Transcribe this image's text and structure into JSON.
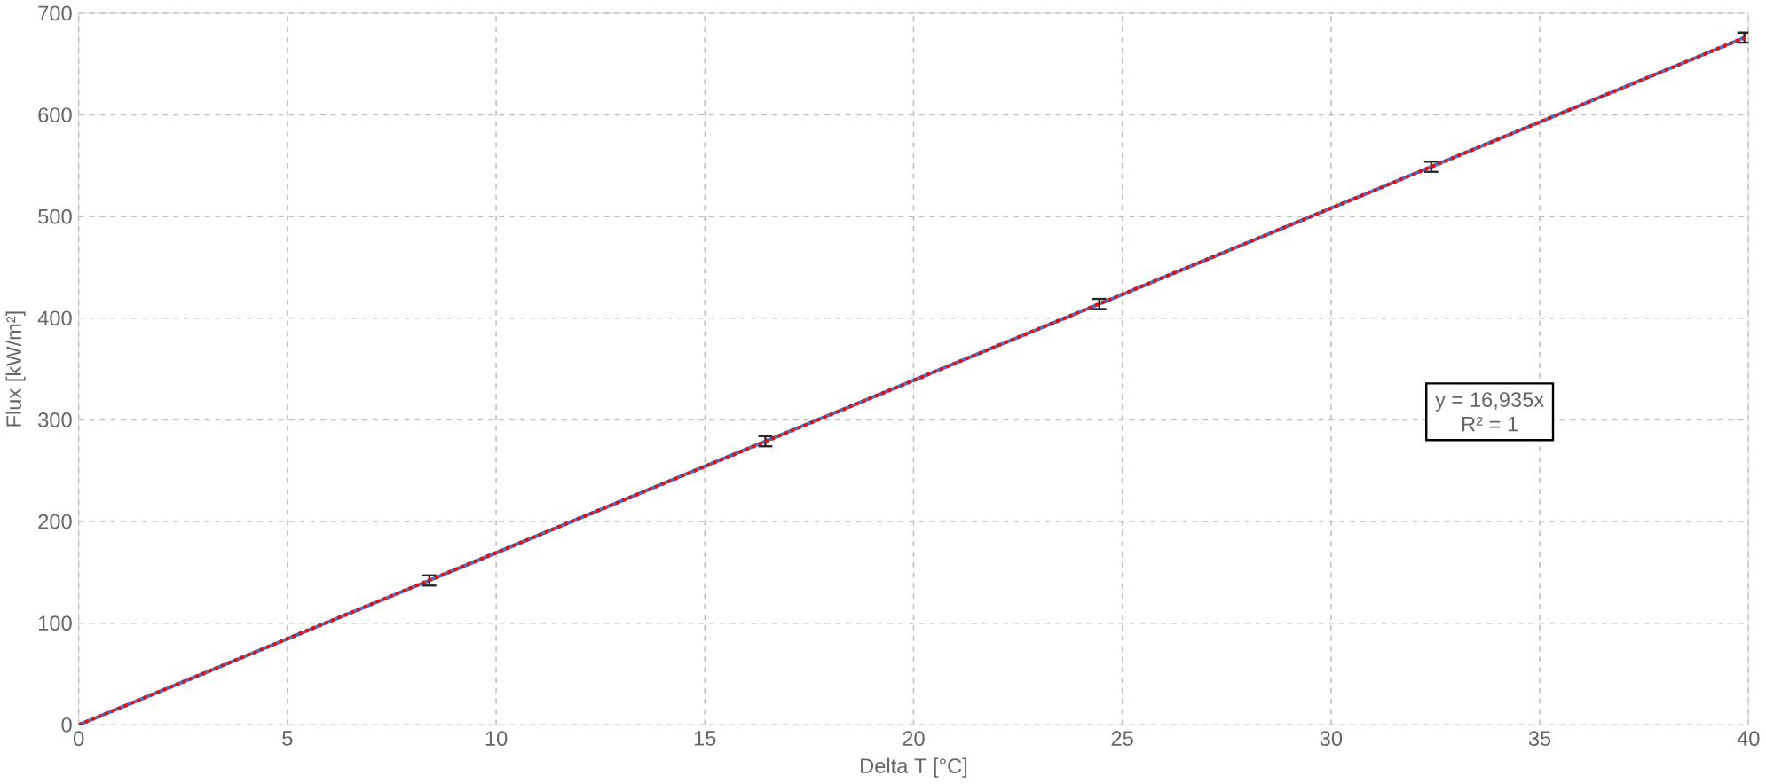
{
  "chart_data": {
    "type": "line",
    "xlabel": "Delta T [°C]",
    "ylabel": "Flux [kW/m²]",
    "xlim": [
      0,
      40
    ],
    "ylim": [
      0,
      700
    ],
    "xticks": [
      0,
      5,
      10,
      15,
      20,
      25,
      30,
      35,
      40
    ],
    "yticks": [
      0,
      100,
      200,
      300,
      400,
      500,
      600,
      700
    ],
    "grid": true,
    "marker": "none",
    "series": [
      {
        "color": "#4472c4",
        "x": [
          0,
          8.4,
          16.45,
          24.45,
          32.4,
          39.9
        ],
        "values": [
          0,
          142,
          279,
          414,
          549,
          676
        ],
        "errors": [
          null,
          5,
          5,
          5,
          5,
          5
        ],
        "line_style": "solid"
      },
      {
        "color": "#ff0000",
        "x": [
          0,
          39.9
        ],
        "values": [
          0,
          676
        ],
        "line_style": "dotted"
      }
    ],
    "annotations": [
      "y = 16,935x",
      "R² = 1"
    ]
  }
}
